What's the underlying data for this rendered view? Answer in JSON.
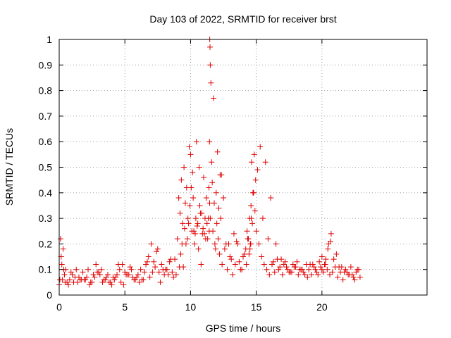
{
  "chart_data": {
    "type": "scatter",
    "title": "Day 103 of 2022, SRMTID for receiver brst",
    "xlabel": "GPS time / hours",
    "ylabel": "SRMTID / TECUs",
    "xlim": [
      0,
      28
    ],
    "ylim": [
      0,
      1
    ],
    "xticks": [
      0,
      5,
      10,
      15,
      20
    ],
    "yticks": [
      0,
      0.1,
      0.2,
      0.3,
      0.4,
      0.5,
      0.6,
      0.7,
      0.8,
      0.9,
      1
    ],
    "marker": "plus",
    "color": "#e00000",
    "grid": true,
    "series": [
      {
        "name": "SRMTID",
        "x": [
          0.0,
          0.1,
          0.2,
          0.3,
          0.4,
          0.5,
          0.6,
          0.8,
          1.0,
          1.2,
          1.4,
          1.6,
          1.8,
          2.0,
          2.2,
          2.4,
          2.6,
          2.8,
          3.0,
          3.2,
          3.4,
          3.6,
          3.8,
          4.0,
          4.2,
          4.4,
          4.6,
          4.8,
          5.0,
          5.2,
          5.4,
          5.6,
          5.8,
          6.0,
          6.2,
          6.4,
          6.6,
          6.8,
          7.0,
          7.2,
          7.4,
          7.6,
          7.8,
          8.0,
          8.2,
          8.4,
          8.6,
          8.8,
          9.0,
          9.1,
          9.2,
          9.3,
          9.4,
          9.5,
          9.6,
          9.7,
          9.8,
          9.9,
          10.0,
          10.1,
          10.2,
          10.3,
          10.4,
          10.5,
          10.6,
          10.7,
          10.8,
          10.9,
          11.0,
          11.1,
          11.2,
          11.3,
          11.4,
          11.5,
          11.6,
          11.7,
          11.8,
          11.9,
          12.0,
          12.1,
          12.2,
          12.3,
          12.4,
          12.6,
          12.8,
          13.0,
          13.2,
          13.4,
          13.6,
          13.8,
          14.0,
          14.2,
          14.3,
          14.4,
          14.5,
          14.6,
          14.7,
          14.8,
          14.9,
          15.0,
          15.2,
          15.4,
          15.6,
          15.8,
          16.0,
          16.2,
          16.4,
          16.6,
          16.8,
          17.0,
          17.2,
          17.4,
          17.6,
          17.8,
          18.0,
          18.2,
          18.4,
          18.6,
          18.8,
          19.0,
          19.2,
          19.4,
          19.6,
          19.8,
          20.0,
          20.2,
          20.4,
          20.6,
          20.8,
          21.0,
          21.2,
          21.4,
          21.6,
          21.8,
          22.0,
          22.2,
          22.4,
          22.6,
          22.8,
          0.05,
          0.15,
          0.35,
          0.7,
          1.1,
          1.5,
          1.9,
          2.3,
          2.7,
          3.1,
          3.5,
          3.9,
          4.3,
          4.7,
          5.1,
          5.5,
          5.9,
          6.3,
          6.7,
          7.1,
          7.5,
          7.9,
          8.3,
          8.7,
          9.15,
          9.35,
          9.55,
          9.75,
          9.95,
          10.15,
          10.35,
          10.55,
          10.75,
          10.95,
          11.15,
          11.35,
          11.42,
          11.44,
          11.46,
          11.48,
          11.5,
          11.55,
          11.75,
          11.95,
          12.15,
          12.35,
          12.7,
          13.1,
          13.5,
          13.9,
          14.25,
          14.45,
          14.55,
          14.65,
          14.85,
          15.1,
          15.5,
          15.9,
          16.3,
          16.7,
          17.1,
          17.5,
          17.9,
          18.3,
          18.7,
          19.1,
          19.5,
          19.9,
          20.1,
          20.3,
          20.5,
          20.7,
          21.1,
          21.5,
          21.9,
          22.3,
          22.7,
          0.25,
          0.45,
          0.9,
          1.3,
          1.7,
          2.1,
          2.5,
          2.9,
          3.3,
          3.7,
          4.1,
          4.5,
          4.9,
          5.3,
          5.7,
          6.1,
          6.5,
          6.9,
          7.3,
          7.7,
          8.1,
          8.5,
          8.9,
          9.25,
          9.45,
          9.65,
          9.85,
          10.05,
          10.25,
          10.45,
          10.65,
          10.85,
          11.05,
          11.25,
          11.45,
          11.65,
          11.85,
          12.05,
          12.25,
          12.5,
          12.9,
          13.3,
          13.7,
          14.1,
          14.35,
          14.52,
          14.58,
          14.62,
          14.75,
          14.95,
          15.3,
          15.7,
          16.1,
          16.5,
          16.9,
          17.3,
          17.7,
          18.1,
          18.5,
          18.9,
          19.3,
          19.7,
          20.0,
          20.25,
          20.45,
          20.65,
          20.9,
          21.3,
          21.7,
          22.1,
          22.5,
          22.9
        ],
        "values": [
          0.04,
          0.22,
          0.12,
          0.18,
          0.08,
          0.1,
          0.05,
          0.06,
          0.08,
          0.07,
          0.05,
          0.06,
          0.09,
          0.06,
          0.1,
          0.05,
          0.08,
          0.12,
          0.09,
          0.1,
          0.06,
          0.07,
          0.05,
          0.04,
          0.06,
          0.08,
          0.1,
          0.12,
          0.09,
          0.08,
          0.11,
          0.07,
          0.06,
          0.08,
          0.1,
          0.06,
          0.12,
          0.15,
          0.2,
          0.13,
          0.17,
          0.09,
          0.12,
          0.08,
          0.1,
          0.13,
          0.09,
          0.14,
          0.22,
          0.38,
          0.32,
          0.45,
          0.28,
          0.5,
          0.36,
          0.42,
          0.3,
          0.58,
          0.55,
          0.25,
          0.38,
          0.2,
          0.3,
          0.27,
          0.18,
          0.35,
          0.12,
          0.24,
          0.46,
          0.3,
          0.38,
          0.22,
          0.42,
          0.3,
          0.52,
          0.25,
          0.36,
          0.18,
          0.28,
          0.22,
          0.16,
          0.3,
          0.12,
          0.18,
          0.1,
          0.15,
          0.08,
          0.12,
          0.2,
          0.1,
          0.15,
          0.18,
          0.25,
          0.22,
          0.3,
          0.35,
          0.28,
          0.4,
          0.33,
          0.25,
          0.2,
          0.15,
          0.12,
          0.1,
          0.08,
          0.12,
          0.09,
          0.14,
          0.11,
          0.08,
          0.13,
          0.1,
          0.09,
          0.12,
          0.11,
          0.08,
          0.1,
          0.09,
          0.12,
          0.1,
          0.08,
          0.11,
          0.09,
          0.13,
          0.15,
          0.12,
          0.1,
          0.08,
          0.09,
          0.11,
          0.07,
          0.09,
          0.06,
          0.1,
          0.08,
          0.11,
          0.07,
          0.09,
          0.1,
          0.06,
          0.15,
          0.1,
          0.04,
          0.05,
          0.07,
          0.06,
          0.04,
          0.07,
          0.08,
          0.06,
          0.05,
          0.07,
          0.05,
          0.08,
          0.1,
          0.07,
          0.06,
          0.13,
          0.09,
          0.18,
          0.1,
          0.08,
          0.07,
          0.11,
          0.2,
          0.26,
          0.22,
          0.35,
          0.48,
          0.24,
          0.28,
          0.32,
          0.26,
          0.22,
          0.3,
          0.25,
          0.6,
          1.0,
          0.97,
          0.9,
          0.83,
          0.77,
          0.4,
          0.34,
          0.47,
          0.2,
          0.14,
          0.21,
          0.1,
          0.12,
          0.16,
          0.2,
          0.52,
          0.55,
          0.49,
          0.3,
          0.22,
          0.13,
          0.1,
          0.12,
          0.09,
          0.11,
          0.1,
          0.08,
          0.12,
          0.1,
          0.11,
          0.09,
          0.14,
          0.2,
          0.24,
          0.16,
          0.11,
          0.09,
          0.08,
          0.1,
          0.06,
          0.05,
          0.09,
          0.1,
          0.06,
          0.07,
          0.05,
          0.09,
          0.05,
          0.08,
          0.07,
          0.12,
          0.04,
          0.08,
          0.06,
          0.05,
          0.09,
          0.07,
          0.11,
          0.05,
          0.1,
          0.14,
          0.08,
          0.16,
          0.11,
          0.2,
          0.28,
          0.42,
          0.25,
          0.6,
          0.5,
          0.32,
          0.24,
          0.28,
          0.36,
          0.44,
          0.2,
          0.56,
          0.47,
          0.38,
          0.2,
          0.24,
          0.13,
          0.16,
          0.22,
          0.18,
          0.2,
          0.3,
          0.4,
          0.45,
          0.58,
          0.52,
          0.38,
          0.2,
          0.14,
          0.11,
          0.09,
          0.13,
          0.1,
          0.07,
          0.12,
          0.08,
          0.1,
          0.12,
          0.18,
          0.21,
          0.14,
          0.11,
          0.09,
          0.08,
          0.06,
          0.07
        ]
      }
    ]
  }
}
